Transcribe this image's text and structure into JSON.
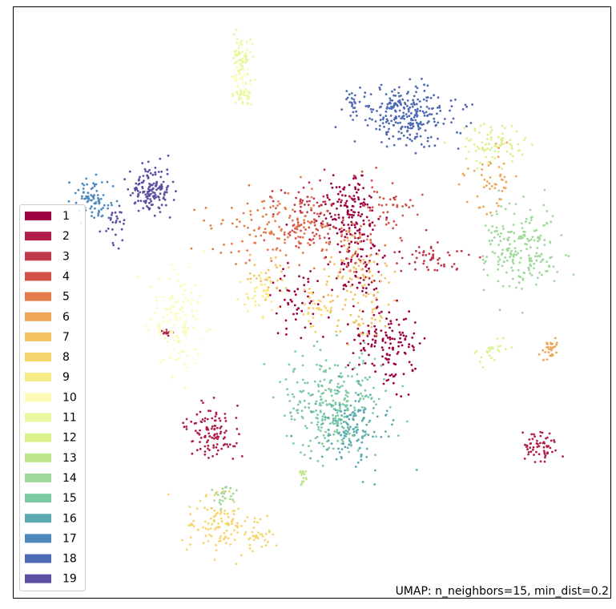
{
  "chart_data": {
    "type": "scatter",
    "title": "",
    "xlabel": "",
    "ylabel": "",
    "grid": false,
    "axes_ticks": false,
    "legend_placement": "left-middle",
    "annotation": "UMAP: n_neighbors=15, min_dist=0.2",
    "series": [
      {
        "name": "1",
        "color": "#9e0142",
        "clusters": [
          {
            "cx": 0.55,
            "cy": 0.37,
            "sx": 0.03,
            "sy": 0.045,
            "n": 160
          },
          {
            "cx": 0.62,
            "cy": 0.63,
            "sx": 0.03,
            "sy": 0.045,
            "n": 140
          },
          {
            "cx": 0.45,
            "cy": 0.55,
            "sx": 0.025,
            "sy": 0.035,
            "n": 50
          },
          {
            "cx": 0.56,
            "cy": 0.48,
            "sx": 0.03,
            "sy": 0.03,
            "n": 70
          }
        ]
      },
      {
        "name": "2",
        "color": "#b11f48",
        "clusters": [
          {
            "cx": 0.29,
            "cy": 0.81,
            "sx": 0.025,
            "sy": 0.025,
            "n": 110
          },
          {
            "cx": 0.91,
            "cy": 0.84,
            "sx": 0.015,
            "sy": 0.015,
            "n": 60
          },
          {
            "cx": 0.2,
            "cy": 0.61,
            "sx": 0.004,
            "sy": 0.004,
            "n": 12
          }
        ]
      },
      {
        "name": "3",
        "color": "#c0394a",
        "clusters": [
          {
            "cx": 0.71,
            "cy": 0.46,
            "sx": 0.03,
            "sy": 0.015,
            "n": 50
          },
          {
            "cx": 0.46,
            "cy": 0.34,
            "sx": 0.03,
            "sy": 0.02,
            "n": 40
          }
        ]
      },
      {
        "name": "4",
        "color": "#d4524a",
        "clusters": [
          {
            "cx": 0.47,
            "cy": 0.4,
            "sx": 0.035,
            "sy": 0.02,
            "n": 60
          },
          {
            "cx": 0.62,
            "cy": 0.35,
            "sx": 0.03,
            "sy": 0.03,
            "n": 50
          }
        ]
      },
      {
        "name": "5",
        "color": "#e37c4b",
        "clusters": [
          {
            "cx": 0.4,
            "cy": 0.4,
            "sx": 0.06,
            "sy": 0.04,
            "n": 120
          },
          {
            "cx": 0.55,
            "cy": 0.44,
            "sx": 0.03,
            "sy": 0.03,
            "n": 40
          }
        ]
      },
      {
        "name": "6",
        "color": "#eea756",
        "clusters": [
          {
            "cx": 0.82,
            "cy": 0.3,
            "sx": 0.02,
            "sy": 0.04,
            "n": 50
          },
          {
            "cx": 0.93,
            "cy": 0.64,
            "sx": 0.01,
            "sy": 0.012,
            "n": 30
          }
        ]
      },
      {
        "name": "7",
        "color": "#f4c25f",
        "clusters": [
          {
            "cx": 0.57,
            "cy": 0.53,
            "sx": 0.04,
            "sy": 0.05,
            "n": 110
          },
          {
            "cx": 0.4,
            "cy": 0.5,
            "sx": 0.02,
            "sy": 0.02,
            "n": 30
          }
        ]
      },
      {
        "name": "8",
        "color": "#f6d56d",
        "clusters": [
          {
            "cx": 0.3,
            "cy": 1.0,
            "sx": 0.03,
            "sy": 0.03,
            "n": 110
          },
          {
            "cx": 0.38,
            "cy": 1.02,
            "sx": 0.015,
            "sy": 0.015,
            "n": 30
          },
          {
            "cx": 0.48,
            "cy": 0.56,
            "sx": 0.015,
            "sy": 0.02,
            "n": 30
          }
        ]
      },
      {
        "name": "9",
        "color": "#f6ec88",
        "clusters": [
          {
            "cx": 0.38,
            "cy": 0.53,
            "sx": 0.02,
            "sy": 0.02,
            "n": 40
          }
        ]
      },
      {
        "name": "10",
        "color": "#fbfbb5",
        "clusters": [
          {
            "cx": 0.22,
            "cy": 0.59,
            "sx": 0.025,
            "sy": 0.05,
            "n": 130
          },
          {
            "cx": 0.34,
            "cy": 0.1,
            "sx": 0.01,
            "sy": 0.02,
            "n": 30
          }
        ]
      },
      {
        "name": "11",
        "color": "#eaf79f",
        "clusters": [
          {
            "cx": 0.345,
            "cy": 0.05,
            "sx": 0.01,
            "sy": 0.02,
            "n": 60
          },
          {
            "cx": 0.345,
            "cy": 0.13,
            "sx": 0.01,
            "sy": 0.01,
            "n": 30
          }
        ]
      },
      {
        "name": "12",
        "color": "#dbf28d",
        "clusters": [
          {
            "cx": 0.82,
            "cy": 0.23,
            "sx": 0.03,
            "sy": 0.02,
            "n": 80
          },
          {
            "cx": 0.82,
            "cy": 0.65,
            "sx": 0.015,
            "sy": 0.012,
            "n": 25
          }
        ]
      },
      {
        "name": "13",
        "color": "#bde58a",
        "clusters": [
          {
            "cx": 0.46,
            "cy": 0.9,
            "sx": 0.004,
            "sy": 0.01,
            "n": 15
          }
        ]
      },
      {
        "name": "14",
        "color": "#a0d89b",
        "clusters": [
          {
            "cx": 0.875,
            "cy": 0.44,
            "sx": 0.035,
            "sy": 0.045,
            "n": 200
          },
          {
            "cx": 0.31,
            "cy": 0.94,
            "sx": 0.01,
            "sy": 0.015,
            "n": 25
          }
        ]
      },
      {
        "name": "15",
        "color": "#7dc9a4",
        "clusters": [
          {
            "cx": 0.52,
            "cy": 0.76,
            "sx": 0.05,
            "sy": 0.05,
            "n": 300
          }
        ]
      },
      {
        "name": "16",
        "color": "#5eaab2",
        "clusters": [
          {
            "cx": 0.55,
            "cy": 0.8,
            "sx": 0.035,
            "sy": 0.04,
            "n": 130
          }
        ]
      },
      {
        "name": "17",
        "color": "#4e88bc",
        "clusters": [
          {
            "cx": 0.06,
            "cy": 0.34,
            "sx": 0.015,
            "sy": 0.02,
            "n": 80
          }
        ]
      },
      {
        "name": "18",
        "color": "#4f6ab4",
        "clusters": [
          {
            "cx": 0.66,
            "cy": 0.17,
            "sx": 0.05,
            "sy": 0.03,
            "n": 260
          },
          {
            "cx": 0.56,
            "cy": 0.14,
            "sx": 0.015,
            "sy": 0.012,
            "n": 25
          }
        ]
      },
      {
        "name": "19",
        "color": "#5e4fa2",
        "clusters": [
          {
            "cx": 0.17,
            "cy": 0.32,
            "sx": 0.02,
            "sy": 0.02,
            "n": 150
          },
          {
            "cx": 0.1,
            "cy": 0.39,
            "sx": 0.012,
            "sy": 0.02,
            "n": 25
          }
        ]
      }
    ]
  }
}
